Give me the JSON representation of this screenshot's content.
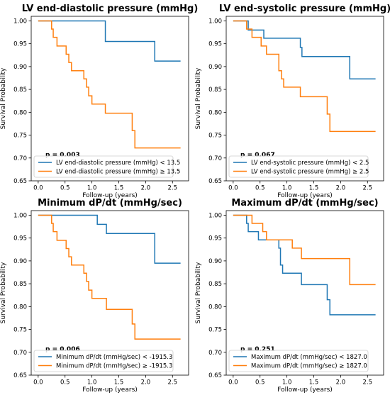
{
  "chart_data": [
    {
      "type": "line",
      "step": "post",
      "title": "LV end-diastolic pressure (mmHg)",
      "xlabel": "Follow-up (years)",
      "ylabel": "Survival Probability",
      "xlim": [
        -0.13,
        2.8
      ],
      "ylim": [
        0.65,
        1.01
      ],
      "xticks": [
        "0.0",
        "0.5",
        "1.0",
        "1.5",
        "2.0",
        "2.5"
      ],
      "yticks": [
        "0.65",
        "0.70",
        "0.75",
        "0.80",
        "0.85",
        "0.90",
        "0.95",
        "1.00"
      ],
      "legend_position": "lower-left",
      "annotation": "p = 0.003",
      "series": [
        {
          "name": "LV end-diastolic pressure (mmHg) < 13.5",
          "color": "#1f77b4",
          "x": [
            0,
            1.25,
            1.25,
            2.17,
            2.17,
            2.65
          ],
          "y": [
            1.0,
            1.0,
            0.955,
            0.955,
            0.912,
            0.912
          ]
        },
        {
          "name": "LV end-diastolic pressure (mmHg) ≥ 13.5",
          "color": "#ff7f0e",
          "x": [
            0,
            0.25,
            0.25,
            0.28,
            0.28,
            0.35,
            0.35,
            0.52,
            0.52,
            0.57,
            0.57,
            0.62,
            0.62,
            0.85,
            0.85,
            0.9,
            0.9,
            0.94,
            0.94,
            1.0,
            1.0,
            1.25,
            1.25,
            1.75,
            1.75,
            1.8,
            1.8,
            2.65
          ],
          "y": [
            1.0,
            1.0,
            0.982,
            0.982,
            0.964,
            0.964,
            0.945,
            0.945,
            0.927,
            0.927,
            0.909,
            0.909,
            0.891,
            0.891,
            0.873,
            0.873,
            0.855,
            0.855,
            0.836,
            0.836,
            0.818,
            0.818,
            0.798,
            0.798,
            0.76,
            0.76,
            0.722,
            0.722
          ]
        }
      ]
    },
    {
      "type": "line",
      "step": "post",
      "title": "LV end-systolic pressure (mmHg)",
      "xlabel": "Follow-up (years)",
      "ylabel": "Survival Probability",
      "xlim": [
        -0.13,
        2.8
      ],
      "ylim": [
        0.65,
        1.01
      ],
      "xticks": [
        "0.0",
        "0.5",
        "1.0",
        "1.5",
        "2.0",
        "2.5"
      ],
      "yticks": [
        "0.65",
        "0.70",
        "0.75",
        "0.80",
        "0.85",
        "0.90",
        "0.95",
        "1.00"
      ],
      "legend_position": "lower-left",
      "annotation": "p = 0.067",
      "series": [
        {
          "name": "LV end-systolic pressure (mmHg) < 2.5",
          "color": "#1f77b4",
          "x": [
            0,
            0.28,
            0.28,
            0.57,
            0.57,
            1.25,
            1.25,
            1.28,
            1.28,
            2.17,
            2.17,
            2.65
          ],
          "y": [
            1.0,
            1.0,
            0.98,
            0.98,
            0.962,
            0.962,
            0.942,
            0.942,
            0.922,
            0.922,
            0.873,
            0.873
          ]
        },
        {
          "name": "LV end-systolic pressure (mmHg) ≥ 2.5",
          "color": "#ff7f0e",
          "x": [
            0,
            0.25,
            0.25,
            0.35,
            0.35,
            0.52,
            0.52,
            0.62,
            0.62,
            0.85,
            0.85,
            0.9,
            0.9,
            0.94,
            0.94,
            1.25,
            1.25,
            1.75,
            1.75,
            1.8,
            1.8,
            2.65
          ],
          "y": [
            1.0,
            1.0,
            0.982,
            0.982,
            0.964,
            0.964,
            0.945,
            0.945,
            0.927,
            0.927,
            0.891,
            0.891,
            0.873,
            0.873,
            0.855,
            0.855,
            0.834,
            0.834,
            0.796,
            0.796,
            0.758,
            0.758
          ]
        }
      ]
    },
    {
      "type": "line",
      "step": "post",
      "title": "Minimum dP/dt (mmHg/sec)",
      "xlabel": "Follow-up (years)",
      "ylabel": "Survival Probability",
      "xlim": [
        -0.13,
        2.8
      ],
      "ylim": [
        0.65,
        1.01
      ],
      "xticks": [
        "0.0",
        "0.5",
        "1.0",
        "1.5",
        "2.0",
        "2.5"
      ],
      "yticks": [
        "0.65",
        "0.70",
        "0.75",
        "0.80",
        "0.85",
        "0.90",
        "0.95",
        "1.00"
      ],
      "legend_position": "lower-left",
      "annotation": "p = 0.006",
      "series": [
        {
          "name": "Minimum dP/dt (mmHg/sec) < -1915.3",
          "color": "#1f77b4",
          "x": [
            0,
            1.1,
            1.1,
            1.27,
            1.27,
            2.17,
            2.17,
            2.65
          ],
          "y": [
            1.0,
            1.0,
            0.98,
            0.98,
            0.96,
            0.96,
            0.895,
            0.895
          ]
        },
        {
          "name": "Minimum dP/dt (mmHg/sec) ≥ -1915.3",
          "color": "#ff7f0e",
          "x": [
            0,
            0.25,
            0.25,
            0.28,
            0.28,
            0.35,
            0.35,
            0.52,
            0.52,
            0.57,
            0.57,
            0.62,
            0.62,
            0.85,
            0.85,
            0.9,
            0.9,
            0.94,
            0.94,
            1.0,
            1.0,
            1.27,
            1.27,
            1.75,
            1.75,
            1.8,
            1.8,
            2.65
          ],
          "y": [
            1.0,
            1.0,
            0.982,
            0.982,
            0.964,
            0.964,
            0.945,
            0.945,
            0.927,
            0.927,
            0.909,
            0.909,
            0.891,
            0.891,
            0.873,
            0.873,
            0.855,
            0.855,
            0.836,
            0.836,
            0.818,
            0.818,
            0.794,
            0.794,
            0.762,
            0.762,
            0.729,
            0.729
          ]
        }
      ]
    },
    {
      "type": "line",
      "step": "post",
      "title": "Maximum dP/dt (mmHg/sec)",
      "xlabel": "Follow-up (years)",
      "ylabel": "Survival Probability",
      "xlim": [
        -0.13,
        2.8
      ],
      "ylim": [
        0.65,
        1.01
      ],
      "xticks": [
        "0.0",
        "0.5",
        "1.0",
        "1.5",
        "2.0",
        "2.5"
      ],
      "yticks": [
        "0.65",
        "0.70",
        "0.75",
        "0.80",
        "0.85",
        "0.90",
        "0.95",
        "1.00"
      ],
      "legend_position": "lower-left",
      "annotation": "p = 0.251",
      "series": [
        {
          "name": "Maximum dP/dt (mmHg/sec) < 1827.0",
          "color": "#1f77b4",
          "x": [
            0,
            0.25,
            0.25,
            0.28,
            0.28,
            0.47,
            0.47,
            0.85,
            0.85,
            0.88,
            0.88,
            0.92,
            0.92,
            1.27,
            1.27,
            1.75,
            1.75,
            1.8,
            1.8,
            2.65
          ],
          "y": [
            1.0,
            1.0,
            0.982,
            0.982,
            0.964,
            0.964,
            0.946,
            0.946,
            0.928,
            0.928,
            0.891,
            0.891,
            0.873,
            0.873,
            0.848,
            0.848,
            0.815,
            0.815,
            0.782,
            0.782
          ]
        },
        {
          "name": "Maximum dP/dt (mmHg/sec) ≥ 1827.0",
          "color": "#ff7f0e",
          "x": [
            0,
            0.35,
            0.35,
            0.55,
            0.55,
            0.62,
            0.62,
            1.1,
            1.1,
            1.27,
            1.27,
            2.17,
            2.17,
            2.65
          ],
          "y": [
            1.0,
            1.0,
            0.982,
            0.982,
            0.964,
            0.964,
            0.946,
            0.946,
            0.928,
            0.928,
            0.905,
            0.905,
            0.848,
            0.848
          ]
        }
      ]
    }
  ]
}
